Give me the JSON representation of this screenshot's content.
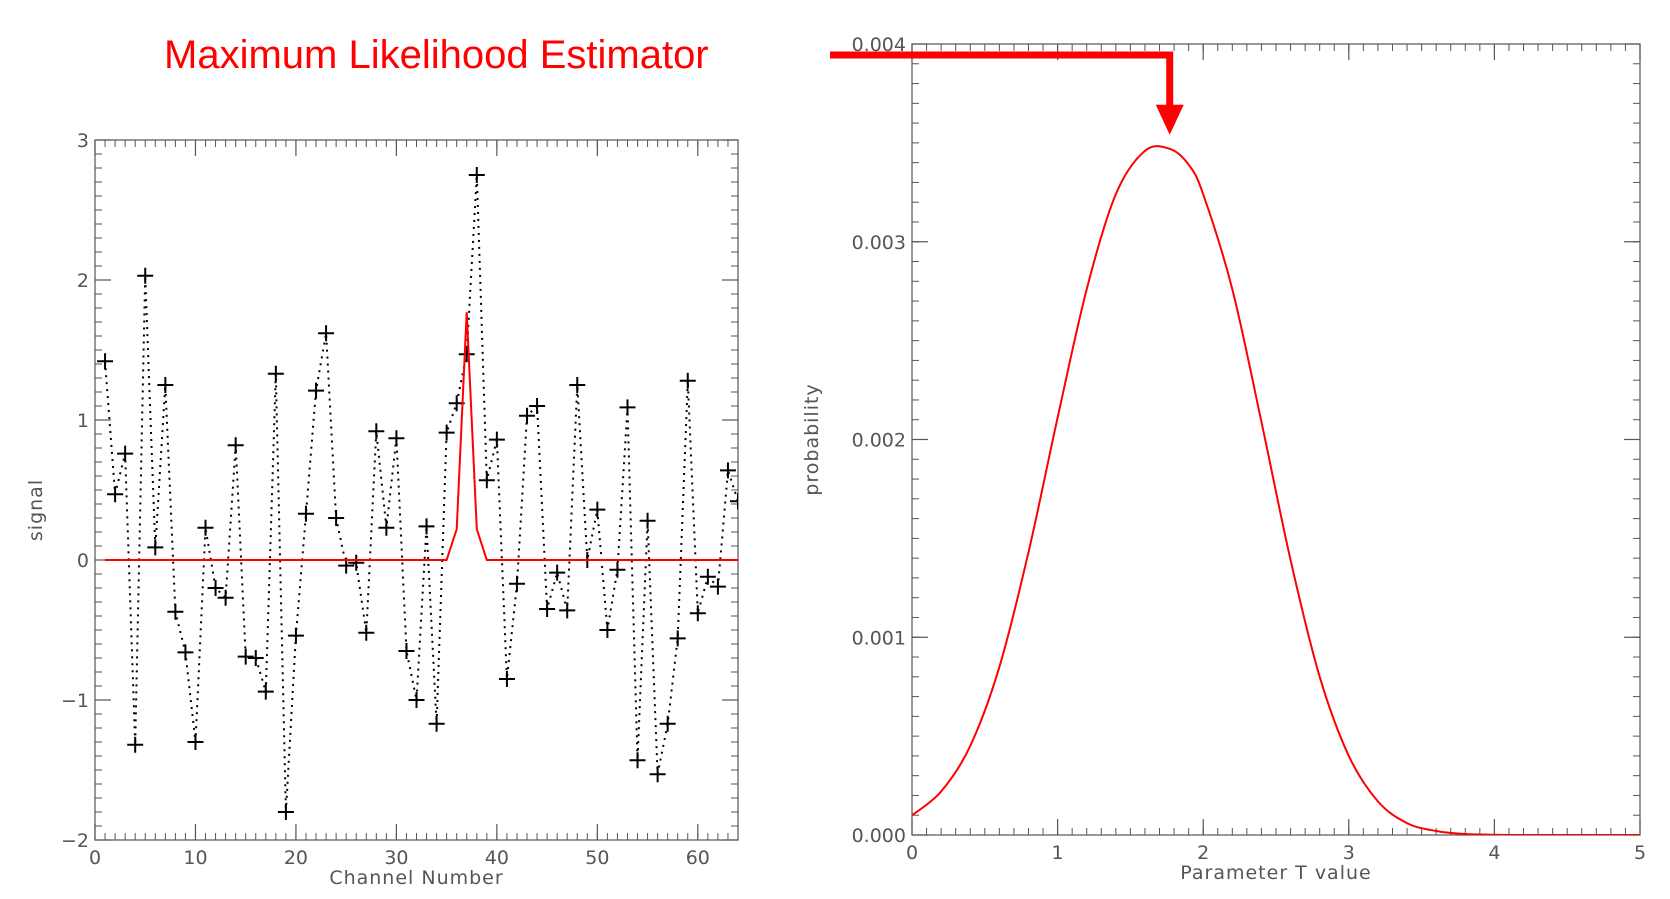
{
  "annotation": {
    "text": "Maximum Likelihood Estimator",
    "color": "#ff0000",
    "points_to": {
      "chart": 1,
      "x": 1.77
    }
  },
  "chart_data": [
    {
      "type": "scatter",
      "title": "",
      "xlabel": "Channel Number",
      "ylabel": "signal",
      "xlim": [
        0,
        64
      ],
      "ylim": [
        -2,
        3
      ],
      "xticks": [
        0,
        10,
        20,
        30,
        40,
        50,
        60
      ],
      "yticks": [
        -2,
        -1,
        0,
        1,
        2,
        3
      ],
      "xtick_labels": [
        "0",
        "10",
        "20",
        "30",
        "40",
        "50",
        "60"
      ],
      "ytick_labels": [
        "−2",
        "−1",
        "0",
        "1",
        "2",
        "3"
      ],
      "grid": false,
      "legend": "none",
      "series": [
        {
          "style": "plus-markers-dotted-line",
          "color": "#000000",
          "x": [
            1,
            2,
            3,
            4,
            5,
            6,
            7,
            8,
            9,
            10,
            11,
            12,
            13,
            14,
            15,
            16,
            17,
            18,
            19,
            20,
            21,
            22,
            23,
            24,
            25,
            26,
            27,
            28,
            29,
            30,
            31,
            32,
            33,
            34,
            35,
            36,
            37,
            38,
            39,
            40,
            41,
            42,
            43,
            44,
            45,
            46,
            47,
            48,
            49,
            50,
            51,
            52,
            53,
            54,
            55,
            56,
            57,
            58,
            59,
            60,
            61,
            62,
            63,
            64
          ],
          "y": [
            1.42,
            0.47,
            0.76,
            -1.32,
            2.03,
            0.09,
            1.25,
            -0.37,
            -0.66,
            -1.3,
            0.23,
            -0.2,
            -0.27,
            0.82,
            -0.69,
            -0.7,
            -0.94,
            1.33,
            -1.8,
            -0.54,
            0.33,
            1.21,
            1.62,
            0.3,
            -0.04,
            -0.02,
            -0.52,
            0.92,
            0.23,
            0.87,
            -0.65,
            -1.0,
            0.24,
            -1.17,
            0.91,
            1.12,
            1.47,
            2.75,
            0.57,
            0.86,
            -0.85,
            -0.17,
            1.03,
            1.1,
            -0.35,
            -0.09,
            -0.36,
            1.25,
            0.0,
            0.36,
            -0.5,
            -0.07,
            1.09,
            -1.43,
            0.28,
            -1.53,
            -1.17,
            -0.56,
            1.28,
            -0.38,
            -0.12,
            -0.19,
            0.64,
            0.42
          ]
        },
        {
          "style": "line",
          "color": "#ff0000",
          "x": [
            1,
            35,
            36,
            37,
            38,
            39,
            64
          ],
          "y": [
            0,
            0,
            0.22,
            1.77,
            0.22,
            0,
            0
          ]
        }
      ]
    },
    {
      "type": "line",
      "title": "",
      "xlabel": "Parameter T value",
      "ylabel": "probability",
      "xlim": [
        0,
        5
      ],
      "ylim": [
        0,
        0.004
      ],
      "xticks": [
        0,
        1,
        2,
        3,
        4,
        5
      ],
      "yticks": [
        0,
        0.001,
        0.002,
        0.003,
        0.004
      ],
      "xtick_labels": [
        "0",
        "1",
        "2",
        "3",
        "4",
        "5"
      ],
      "ytick_labels": [
        "0.000",
        "0.001",
        "0.002",
        "0.003",
        "0.004"
      ],
      "grid": false,
      "legend": "none",
      "series": [
        {
          "style": "line",
          "color": "#ff0000",
          "x": [
            0,
            0.2,
            0.4,
            0.6,
            0.8,
            1.0,
            1.2,
            1.4,
            1.6,
            1.77,
            1.9,
            2.0,
            2.2,
            2.4,
            2.6,
            2.8,
            3.0,
            3.2,
            3.4,
            3.6,
            3.8,
            4.0,
            4.2,
            4.5,
            5.0
          ],
          "y": [
            0.0001,
            0.00022,
            0.00045,
            0.00085,
            0.00143,
            0.00211,
            0.00276,
            0.00324,
            0.00346,
            0.00347,
            0.00339,
            0.00324,
            0.00276,
            0.00209,
            0.00139,
            0.0008,
            0.0004,
            0.00017,
            6e-05,
            2e-05,
            5e-06,
            1e-06,
            0,
            0,
            0
          ]
        }
      ]
    }
  ]
}
